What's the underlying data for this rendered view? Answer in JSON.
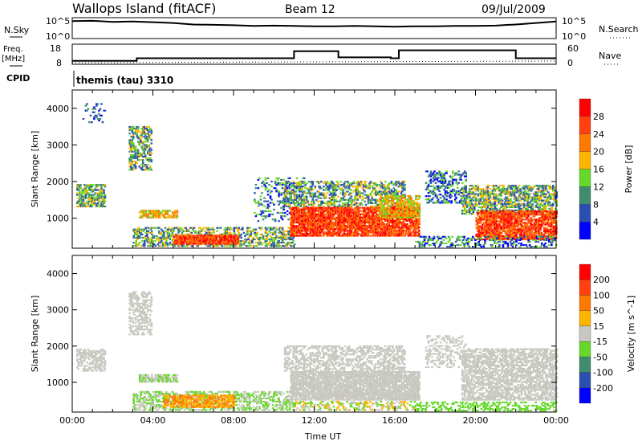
{
  "header": {
    "station": "Wallops Island (fitACF)",
    "beam": "Beam 12",
    "date": "09/Jul/2009"
  },
  "nsky_panel": {
    "label": "N.Sky",
    "right_label": "N.Search",
    "ytick_top": "10^5",
    "ytick_bottom": "10^0"
  },
  "freq_panel": {
    "label_line1": "Freq.",
    "label_line2": "[MHz]",
    "right_label": "Nave",
    "ytick_top": "18",
    "ytick_bottom": "8",
    "rtick_top": "60",
    "rtick_bottom": "0"
  },
  "cpid": {
    "label": "CPID",
    "value": "themis (tau) 3310"
  },
  "chart_data": [
    {
      "type": "heatmap",
      "name": "power",
      "ylabel": "Slant Range [km]",
      "xlabel": "Time UT",
      "xlim": [
        0,
        24
      ],
      "ylim": [
        180,
        4500
      ],
      "xticklabels": [
        "00:00",
        "04:00",
        "08:00",
        "12:00",
        "16:00",
        "20:00",
        "00:00"
      ],
      "yticks": [
        1000,
        2000,
        3000,
        4000
      ],
      "yticklabels": [
        "1000",
        "2000",
        "3000",
        "4000"
      ],
      "colorbar": {
        "label": "Power [dB]",
        "ticks": [
          "4",
          "8",
          "12",
          "16",
          "20",
          "24",
          "28"
        ],
        "colors": [
          "#0000ff",
          "#2a4fb0",
          "#3f8c6e",
          "#66d82a",
          "#ffb400",
          "#ff7800",
          "#ff4010",
          "#ff0000"
        ]
      },
      "regions": [
        {
          "t": [
            0.2,
            1.6
          ],
          "r": [
            1300,
            1900
          ],
          "level": [
            1,
            4
          ],
          "density": 0.55
        },
        {
          "t": [
            0.5,
            1.6
          ],
          "r": [
            3600,
            4100
          ],
          "level": [
            0,
            2
          ],
          "density": 0.15
        },
        {
          "t": [
            2.8,
            3.9
          ],
          "r": [
            2300,
            3500
          ],
          "level": [
            1,
            4
          ],
          "density": 0.5
        },
        {
          "t": [
            3.3,
            5.2
          ],
          "r": [
            1000,
            1220
          ],
          "level": [
            3,
            5
          ],
          "density": 0.7
        },
        {
          "t": [
            3.0,
            11.0
          ],
          "r": [
            220,
            750
          ],
          "level": [
            1,
            4
          ],
          "density": 0.45
        },
        {
          "t": [
            5.0,
            8.2
          ],
          "r": [
            280,
            520
          ],
          "level": [
            5,
            7
          ],
          "density": 0.85
        },
        {
          "t": [
            9.0,
            11.5
          ],
          "r": [
            900,
            2100
          ],
          "level": [
            0,
            3
          ],
          "density": 0.2
        },
        {
          "t": [
            10.5,
            16.5
          ],
          "r": [
            1300,
            2000
          ],
          "level": [
            1,
            4
          ],
          "density": 0.45
        },
        {
          "t": [
            10.8,
            17.2
          ],
          "r": [
            500,
            1300
          ],
          "level": [
            5,
            7
          ],
          "density": 0.8
        },
        {
          "t": [
            15.2,
            17.2
          ],
          "r": [
            1000,
            1600
          ],
          "level": [
            3,
            5
          ],
          "density": 0.6
        },
        {
          "t": [
            17.5,
            19.5
          ],
          "r": [
            1400,
            2300
          ],
          "level": [
            0,
            3
          ],
          "density": 0.35
        },
        {
          "t": [
            19.3,
            24.0
          ],
          "r": [
            1100,
            1900
          ],
          "level": [
            1,
            4
          ],
          "density": 0.55
        },
        {
          "t": [
            20.0,
            24.0
          ],
          "r": [
            400,
            1200
          ],
          "level": [
            5,
            7
          ],
          "density": 0.75
        },
        {
          "t": [
            17.0,
            24.0
          ],
          "r": [
            200,
            500
          ],
          "level": [
            0,
            3
          ],
          "density": 0.3
        }
      ]
    },
    {
      "type": "heatmap",
      "name": "velocity",
      "ylabel": "Slant Range [km]",
      "xlabel": "Time UT",
      "xlim": [
        0,
        24
      ],
      "ylim": [
        180,
        4500
      ],
      "xticklabels": [
        "00:00",
        "04:00",
        "08:00",
        "12:00",
        "16:00",
        "20:00",
        "00:00"
      ],
      "yticks": [
        1000,
        2000,
        3000,
        4000
      ],
      "yticklabels": [
        "1000",
        "2000",
        "3000",
        "4000"
      ],
      "colorbar": {
        "label": "Velocity [m s^-1]",
        "ticks": [
          "200",
          "100",
          "50",
          "15",
          "-15",
          "-50",
          "-100",
          "-200"
        ],
        "colors": [
          "#0000ff",
          "#2a4fb0",
          "#3f8c6e",
          "#66d82a",
          "#c8c8c0",
          "#ffb400",
          "#ff7800",
          "#ff4010",
          "#ff0000"
        ]
      },
      "regions": [
        {
          "t": [
            0.2,
            1.6
          ],
          "r": [
            1300,
            1900
          ],
          "level": [
            4,
            4
          ],
          "density": 0.5
        },
        {
          "t": [
            2.8,
            3.9
          ],
          "r": [
            2300,
            3500
          ],
          "level": [
            4,
            4
          ],
          "density": 0.45
        },
        {
          "t": [
            3.3,
            5.2
          ],
          "r": [
            1000,
            1220
          ],
          "level": [
            3,
            4
          ],
          "density": 0.7
        },
        {
          "t": [
            3.0,
            11.0
          ],
          "r": [
            220,
            750
          ],
          "level": [
            3,
            4
          ],
          "density": 0.45
        },
        {
          "t": [
            4.5,
            8.0
          ],
          "r": [
            300,
            650
          ],
          "level": [
            5,
            6
          ],
          "density": 0.6
        },
        {
          "t": [
            10.5,
            16.5
          ],
          "r": [
            1300,
            2000
          ],
          "level": [
            4,
            4
          ],
          "density": 0.45
        },
        {
          "t": [
            10.8,
            17.2
          ],
          "r": [
            500,
            1300
          ],
          "level": [
            4,
            4
          ],
          "density": 0.8
        },
        {
          "t": [
            11.0,
            17.0
          ],
          "r": [
            220,
            450
          ],
          "level": [
            3,
            5
          ],
          "density": 0.35
        },
        {
          "t": [
            17.5,
            19.5
          ],
          "r": [
            1400,
            2300
          ],
          "level": [
            4,
            4
          ],
          "density": 0.3
        },
        {
          "t": [
            19.3,
            24.0
          ],
          "r": [
            500,
            1900
          ],
          "level": [
            4,
            4
          ],
          "density": 0.6
        },
        {
          "t": [
            17.0,
            24.0
          ],
          "r": [
            200,
            450
          ],
          "level": [
            3,
            3
          ],
          "density": 0.35
        }
      ]
    }
  ],
  "nsky_series": [
    4.5,
    4.6,
    4.3,
    4.4,
    4.2,
    4.0,
    3.6,
    3.5,
    3.4,
    3.2,
    3.3,
    3.2,
    3.1,
    3.1,
    3.2,
    3.1,
    3.0,
    3.1,
    3.1,
    3.2,
    3.2,
    3.3,
    3.6,
    4.0,
    4.4
  ],
  "freq_series": [
    [
      0,
      9
    ],
    [
      3.2,
      9
    ],
    [
      3.2,
      10.5
    ],
    [
      11,
      10.5
    ],
    [
      11,
      14.5
    ],
    [
      13.2,
      14.5
    ],
    [
      13.2,
      11
    ],
    [
      15.8,
      11
    ],
    [
      15.8,
      10.5
    ],
    [
      16.2,
      10.5
    ],
    [
      16.2,
      15
    ],
    [
      22,
      15
    ],
    [
      22,
      10.5
    ],
    [
      24,
      10.5
    ]
  ]
}
